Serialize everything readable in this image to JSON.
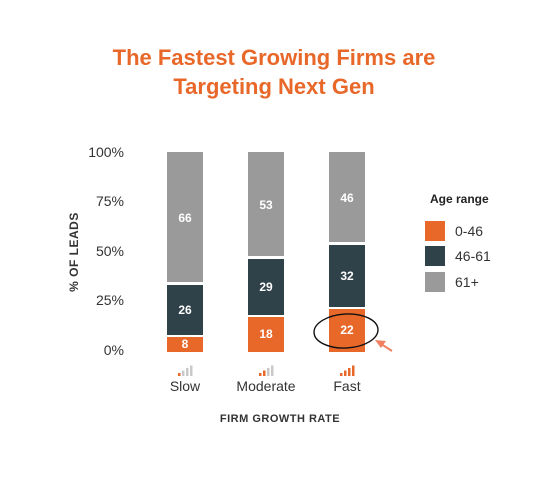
{
  "title_lines": [
    "The Fastest Growing Firms are",
    "Targeting Next Gen"
  ],
  "colors": {
    "title": "#e8682a",
    "annotation": "#f08060"
  },
  "chart_data": {
    "type": "bar",
    "stacked": true,
    "categories": [
      "Slow",
      "Moderate",
      "Fast"
    ],
    "category_icons": [
      "signal-bars-icon-low",
      "signal-bars-icon-medium",
      "signal-bars-icon-high"
    ],
    "series": [
      {
        "name": "0-46",
        "values": [
          8,
          18,
          22
        ],
        "color": "#e8682a"
      },
      {
        "name": "46-61",
        "values": [
          26,
          29,
          32
        ],
        "color": "#2f4149"
      },
      {
        "name": "61+",
        "values": [
          66,
          53,
          46
        ],
        "color": "#9a9a9a"
      }
    ],
    "yticks": [
      "0%",
      "25%",
      "50%",
      "75%",
      "100%"
    ],
    "ylim": [
      0,
      100
    ],
    "xlabel": "FIRM GROWTH RATE",
    "ylabel": "% OF LEADS",
    "legend_title": "Age range",
    "legend_position": "right",
    "grid": false,
    "annotation": {
      "target": "Fast, 0-46 (22)",
      "style": "hand-drawn circle with arrow"
    }
  }
}
